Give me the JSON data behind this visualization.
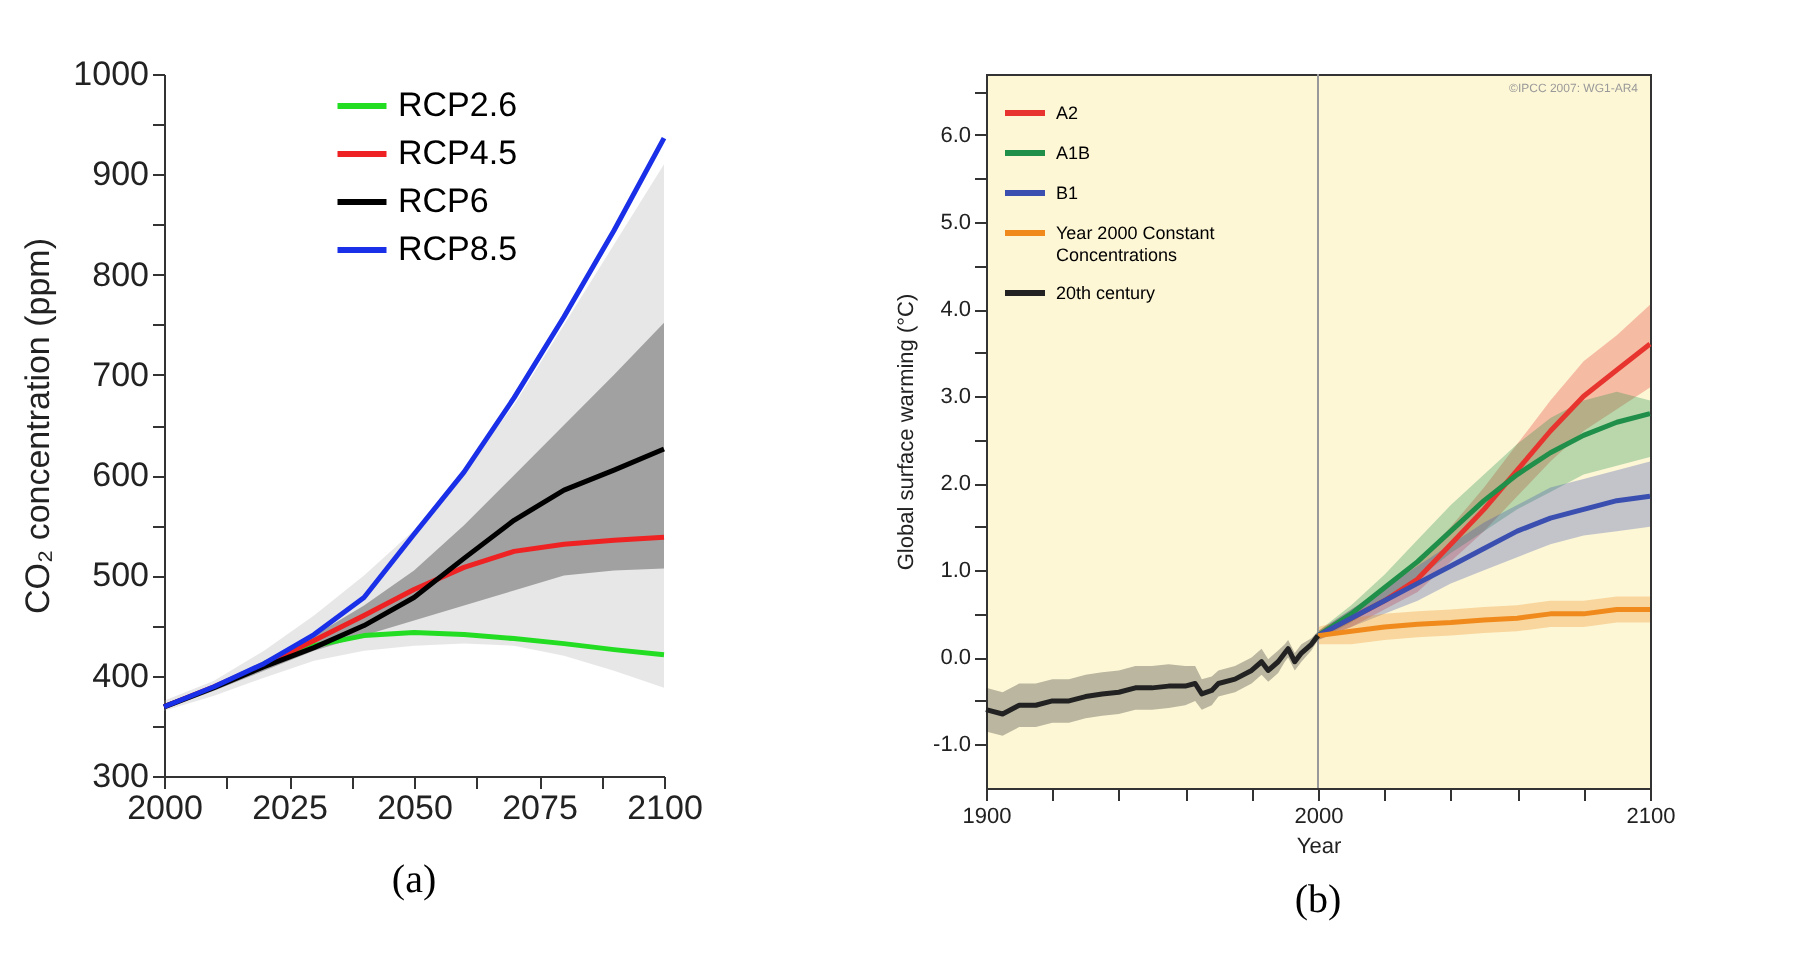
{
  "chart_data": [
    {
      "type": "line",
      "ylabel": "CO₂ concentration (ppm)",
      "annotations": [
        "(a)"
      ],
      "legend": "top left",
      "x": [
        2000,
        2010,
        2020,
        2030,
        2040,
        2050,
        2060,
        2070,
        2080,
        2090,
        2100
      ],
      "xlim": [
        2000,
        2100
      ],
      "xticks": [
        2000,
        {
          "value": 2012.5,
          "label": null
        },
        2025,
        {
          "value": 2037.5,
          "label": null
        },
        2050,
        {
          "value": 2062.5,
          "label": null
        },
        2075,
        {
          "value": 2087.5,
          "label": null
        },
        2100
      ],
      "ylim": [
        300,
        1000
      ],
      "yticks": [
        300,
        {
          "value": 350,
          "label": null
        },
        400,
        {
          "value": 450,
          "label": null
        },
        500,
        {
          "value": 550,
          "label": null
        },
        600,
        {
          "value": 650,
          "label": null
        },
        700,
        {
          "value": 750,
          "label": null
        },
        800,
        {
          "value": 850,
          "label": null
        },
        900,
        {
          "value": 950,
          "label": null
        },
        1000
      ],
      "series": [
        {
          "color": "#b0b0b0",
          "values": [
            null,
            null,
            null,
            null,
            null,
            null,
            null,
            null,
            null,
            null,
            null
          ],
          "lower": [
            365,
            380,
            398,
            415,
            425,
            430,
            432,
            430,
            420,
            405,
            388
          ],
          "upper": [
            375,
            395,
            425,
            460,
            500,
            545,
            605,
            670,
            750,
            830,
            910
          ]
        },
        {
          "name": "RCP2.6",
          "color": "#22dd22",
          "values": [
            null,
            null,
            412,
            430,
            440,
            443,
            441,
            437,
            432,
            426,
            421
          ]
        },
        {
          "name": "RCP4.5",
          "color": "#ee2222",
          "values": [
            369,
            389,
            411,
            435,
            460,
            486,
            508,
            524,
            531,
            535,
            538
          ]
        },
        {
          "name": "RCP6",
          "color": "#000000",
          "values": [
            369,
            388,
            409,
            428,
            450,
            478,
            517,
            555,
            585,
            605,
            626
          ],
          "lower": [
            366,
            385,
            405,
            425,
            440,
            455,
            470,
            485,
            500,
            505,
            507
          ],
          "upper": [
            372,
            390,
            415,
            440,
            470,
            505,
            550,
            600,
            650,
            700,
            752
          ]
        },
        {
          "name": "RCP8.5",
          "color": "#1a2fe8",
          "values": [
            369,
            389,
            412,
            441,
            478,
            541,
            603,
            677,
            758,
            844,
            936
          ]
        }
      ]
    },
    {
      "type": "line",
      "xlabel": "Year",
      "ylabel": "Global surface warming (°C)",
      "annotations": [
        "©IPCC 2007: WG1-AR4",
        "(b)"
      ],
      "legend": "top left",
      "x": [
        2000,
        2010,
        2020,
        2030,
        2040,
        2050,
        2060,
        2070,
        2080,
        2090,
        2100
      ],
      "xlim": [
        1900,
        2100
      ],
      "xticks": [
        1900,
        {
          "value": 1920,
          "label": null
        },
        {
          "value": 1940,
          "label": null
        },
        {
          "value": 1960,
          "label": null
        },
        {
          "value": 1980,
          "label": null
        },
        2000,
        {
          "value": 2020,
          "label": null
        },
        {
          "value": 2040,
          "label": null
        },
        {
          "value": 2060,
          "label": null
        },
        {
          "value": 2080,
          "label": null
        },
        2100
      ],
      "ylim": [
        -1.5,
        6.7
      ],
      "yticks": [
        {
          "value": -1,
          "label": "-1.0"
        },
        {
          "value": -0.5,
          "label": null
        },
        {
          "value": 0,
          "label": "0.0"
        },
        {
          "value": 0.5,
          "label": null
        },
        {
          "value": 1,
          "label": "1.0"
        },
        {
          "value": 1.5,
          "label": null
        },
        {
          "value": 2,
          "label": "2.0"
        },
        {
          "value": 2.5,
          "label": null
        },
        {
          "value": 3,
          "label": "3.0"
        },
        {
          "value": 3.5,
          "label": null
        },
        {
          "value": 4,
          "label": "4.0"
        },
        {
          "value": 4.5,
          "label": null
        },
        {
          "value": 5,
          "label": "5.0"
        },
        {
          "value": 5.5,
          "label": null
        },
        {
          "value": 6,
          "label": "6.0"
        },
        {
          "value": 6.5,
          "label": null
        }
      ],
      "ref_lines": [
        {
          "axis": "x",
          "value": 2000,
          "color": "#999999"
        }
      ],
      "series": [
        {
          "name": "A2",
          "color": "#e8342f",
          "values": [
            0.25,
            0.45,
            0.65,
            0.9,
            1.3,
            1.7,
            2.15,
            2.6,
            3.0,
            3.3,
            3.6
          ],
          "lower": [
            0.2,
            0.35,
            0.55,
            0.75,
            1.1,
            1.45,
            1.85,
            2.25,
            2.6,
            2.85,
            3.1
          ],
          "upper": [
            0.3,
            0.55,
            0.8,
            1.1,
            1.5,
            1.95,
            2.45,
            2.95,
            3.4,
            3.7,
            4.05
          ]
        },
        {
          "name": "A1B",
          "color": "#1f8f4a",
          "values": [
            0.25,
            0.5,
            0.8,
            1.1,
            1.45,
            1.8,
            2.1,
            2.35,
            2.55,
            2.7,
            2.8
          ],
          "lower": [
            0.2,
            0.4,
            0.65,
            0.9,
            1.2,
            1.45,
            1.7,
            1.9,
            2.1,
            2.2,
            2.3
          ],
          "upper": [
            0.3,
            0.6,
            0.95,
            1.35,
            1.75,
            2.1,
            2.45,
            2.75,
            2.95,
            3.05,
            2.95
          ]
        },
        {
          "name": "B1",
          "color": "#3a4fb0",
          "values": [
            0.25,
            0.45,
            0.65,
            0.85,
            1.05,
            1.25,
            1.45,
            1.6,
            1.7,
            1.8,
            1.85
          ],
          "lower": [
            0.2,
            0.35,
            0.5,
            0.65,
            0.85,
            1.0,
            1.15,
            1.3,
            1.4,
            1.45,
            1.5
          ],
          "upper": [
            0.3,
            0.55,
            0.8,
            1.05,
            1.3,
            1.55,
            1.75,
            1.95,
            2.05,
            2.15,
            2.25
          ]
        },
        {
          "name": "Year 2000 Constant Concentrations",
          "color": "#f08a1c",
          "values": [
            0.25,
            0.3,
            0.35,
            0.38,
            0.4,
            0.43,
            0.45,
            0.5,
            0.5,
            0.55,
            0.55
          ],
          "lower": [
            0.15,
            0.15,
            0.2,
            0.23,
            0.25,
            0.28,
            0.3,
            0.35,
            0.35,
            0.4,
            0.4
          ],
          "upper": [
            0.35,
            0.45,
            0.5,
            0.53,
            0.55,
            0.58,
            0.6,
            0.65,
            0.65,
            0.7,
            0.7
          ]
        },
        {
          "name": "20th century",
          "color": "#222222",
          "x": [
            1900,
            1905,
            1910,
            1915,
            1920,
            1925,
            1930,
            1935,
            1940,
            1945,
            1950,
            1955,
            1960,
            1963,
            1965,
            1968,
            1970,
            1975,
            1980,
            1983,
            1985,
            1988,
            1990,
            1991,
            1993,
            1995,
            1998,
            2000
          ],
          "values": [
            -0.6,
            -0.65,
            -0.55,
            -0.55,
            -0.5,
            -0.5,
            -0.45,
            -0.42,
            -0.4,
            -0.35,
            -0.35,
            -0.33,
            -0.33,
            -0.3,
            -0.42,
            -0.38,
            -0.3,
            -0.25,
            -0.15,
            -0.05,
            -0.15,
            -0.05,
            0.05,
            0.1,
            -0.05,
            0.05,
            0.15,
            0.25
          ],
          "lower": [
            -0.85,
            -0.9,
            -0.8,
            -0.8,
            -0.75,
            -0.75,
            -0.7,
            -0.67,
            -0.65,
            -0.6,
            -0.6,
            -0.58,
            -0.55,
            -0.5,
            -0.6,
            -0.55,
            -0.45,
            -0.4,
            -0.3,
            -0.2,
            -0.28,
            -0.18,
            -0.05,
            0.0,
            -0.15,
            -0.05,
            0.08,
            0.2
          ],
          "upper": [
            -0.35,
            -0.4,
            -0.3,
            -0.3,
            -0.25,
            -0.25,
            -0.2,
            -0.17,
            -0.15,
            -0.1,
            -0.1,
            -0.08,
            -0.1,
            -0.1,
            -0.25,
            -0.22,
            -0.15,
            -0.1,
            0.0,
            0.1,
            -0.02,
            0.08,
            0.15,
            0.2,
            0.05,
            0.15,
            0.22,
            0.3
          ]
        }
      ]
    }
  ]
}
